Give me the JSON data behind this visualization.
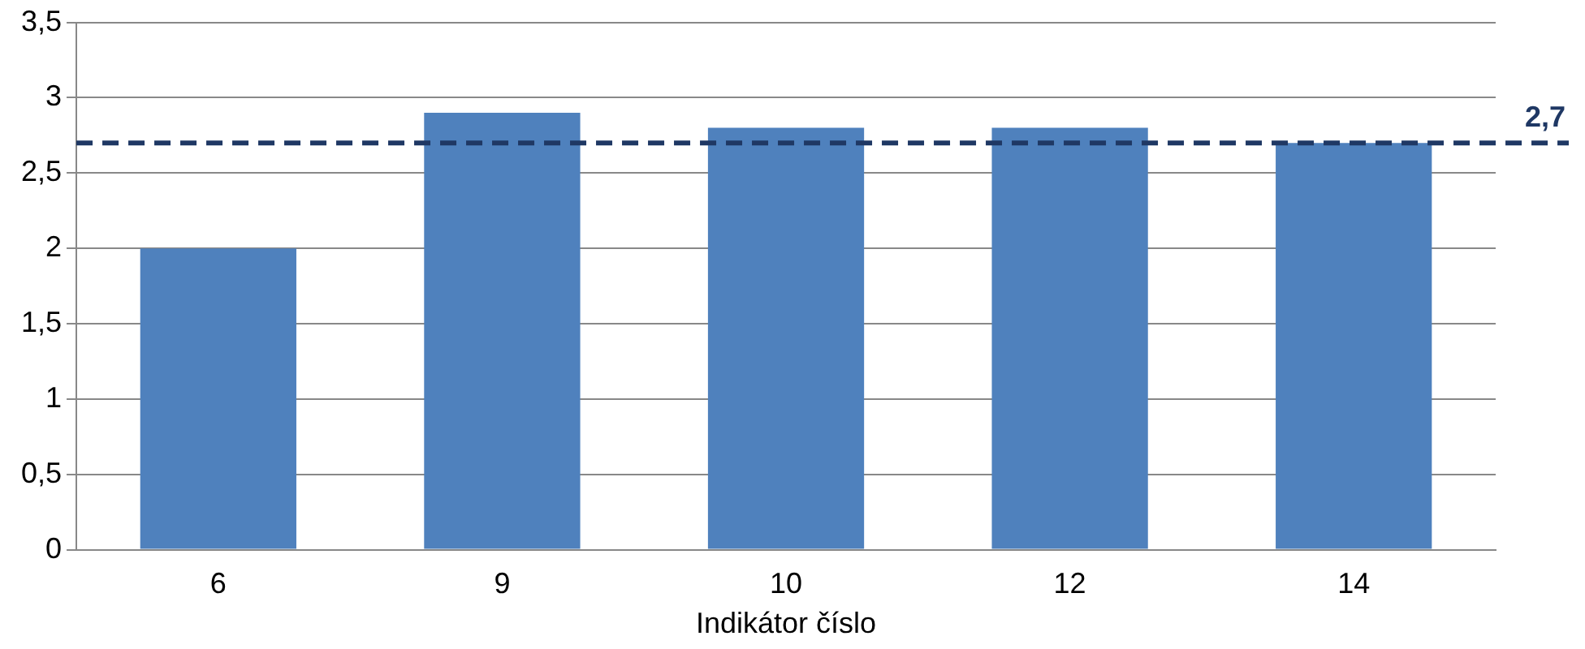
{
  "chart_data": {
    "type": "bar",
    "xlabel": "Indikátor číslo",
    "categories": [
      "6",
      "9",
      "10",
      "12",
      "14"
    ],
    "values": [
      2,
      2.9,
      2.8,
      2.8,
      2.7
    ],
    "color": "#4f81bd",
    "ylim": [
      0,
      3.5
    ],
    "yticks": [
      0,
      {
        "value": 0.5,
        "label": "0,5"
      },
      1,
      {
        "value": 1.5,
        "label": "1,5"
      },
      2,
      {
        "value": 2.5,
        "label": "2,5"
      },
      3,
      {
        "value": 3.5,
        "label": "3,5"
      }
    ],
    "grid": "y",
    "legend": false,
    "ref_lines": [
      {
        "axis": "y",
        "value": 2.7,
        "label": "2,7",
        "color": "#1f3864",
        "line_style": "dashed"
      }
    ]
  }
}
